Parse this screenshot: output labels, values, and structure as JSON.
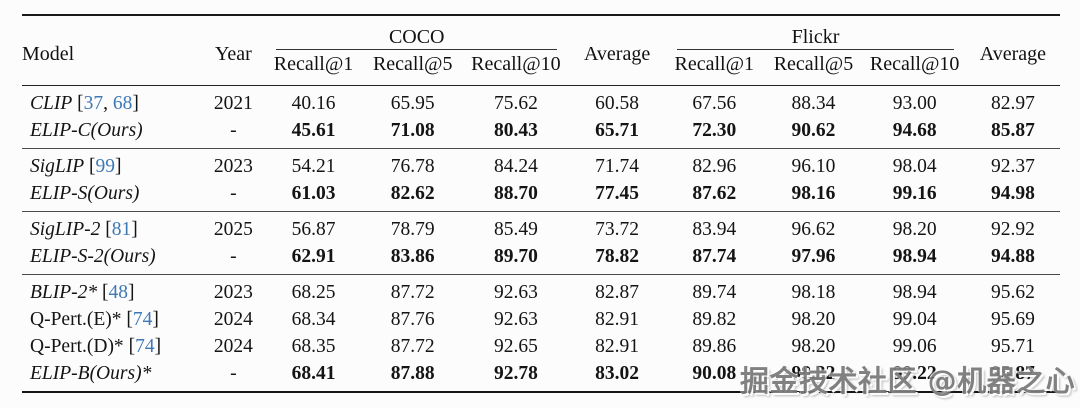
{
  "table": {
    "headers": {
      "model": "Model",
      "year": "Year",
      "coco": "COCO",
      "flickr": "Flickr",
      "average_left": "Average",
      "average_right": "Average",
      "recall1": "Recall@1",
      "recall5": "Recall@5",
      "recall10": "Recall@10"
    },
    "citation_color": "#3e78b5",
    "groups": [
      {
        "rows": [
          {
            "name": "CLIP",
            "cites": [
              "37",
              "68"
            ],
            "year": "2021",
            "italic": true,
            "bold": false,
            "values": [
              "40.16",
              "65.95",
              "75.62",
              "60.58",
              "67.56",
              "88.34",
              "93.00",
              "82.97"
            ]
          },
          {
            "name": "ELIP-C(Ours)",
            "cites": [],
            "year": "-",
            "italic": true,
            "bold": true,
            "values": [
              "45.61",
              "71.08",
              "80.43",
              "65.71",
              "72.30",
              "90.62",
              "94.68",
              "85.87"
            ]
          }
        ]
      },
      {
        "rows": [
          {
            "name": "SigLIP",
            "cites": [
              "99"
            ],
            "year": "2023",
            "italic": true,
            "bold": false,
            "values": [
              "54.21",
              "76.78",
              "84.24",
              "71.74",
              "82.96",
              "96.10",
              "98.04",
              "92.37"
            ]
          },
          {
            "name": "ELIP-S(Ours)",
            "cites": [],
            "year": "-",
            "italic": true,
            "bold": true,
            "values": [
              "61.03",
              "82.62",
              "88.70",
              "77.45",
              "87.62",
              "98.16",
              "99.16",
              "94.98"
            ]
          }
        ]
      },
      {
        "rows": [
          {
            "name": "SigLIP-2",
            "cites": [
              "81"
            ],
            "year": "2025",
            "italic": true,
            "bold": false,
            "values": [
              "56.87",
              "78.79",
              "85.49",
              "73.72",
              "83.94",
              "96.62",
              "98.20",
              "92.92"
            ]
          },
          {
            "name": "ELIP-S-2(Ours)",
            "cites": [],
            "year": "-",
            "italic": true,
            "bold": true,
            "values": [
              "62.91",
              "83.86",
              "89.70",
              "78.82",
              "87.74",
              "97.96",
              "98.94",
              "94.88"
            ]
          }
        ]
      },
      {
        "rows": [
          {
            "name": "BLIP-2*",
            "cites": [
              "48"
            ],
            "year": "2023",
            "italic": true,
            "bold": false,
            "values": [
              "68.25",
              "87.72",
              "92.63",
              "82.87",
              "89.74",
              "98.18",
              "98.94",
              "95.62"
            ]
          },
          {
            "name": "Q-Pert.(E)*",
            "cites": [
              "74"
            ],
            "year": "2024",
            "italic": false,
            "bold": false,
            "values": [
              "68.34",
              "87.76",
              "92.63",
              "82.91",
              "89.82",
              "98.20",
              "99.04",
              "95.69"
            ]
          },
          {
            "name": "Q-Pert.(D)*",
            "cites": [
              "74"
            ],
            "year": "2024",
            "italic": false,
            "bold": false,
            "values": [
              "68.35",
              "87.72",
              "92.65",
              "82.91",
              "89.86",
              "98.20",
              "99.06",
              "95.71"
            ]
          },
          {
            "name": "ELIP-B(Ours)*",
            "cites": [],
            "year": "-",
            "italic": true,
            "bold": true,
            "values": [
              "68.41",
              "87.88",
              "92.78",
              "83.02",
              "90.08",
              "98.32",
              "99.22",
              "95.87"
            ]
          }
        ]
      }
    ]
  },
  "watermark": {
    "text": "掘金技术社区 @机器之心"
  }
}
